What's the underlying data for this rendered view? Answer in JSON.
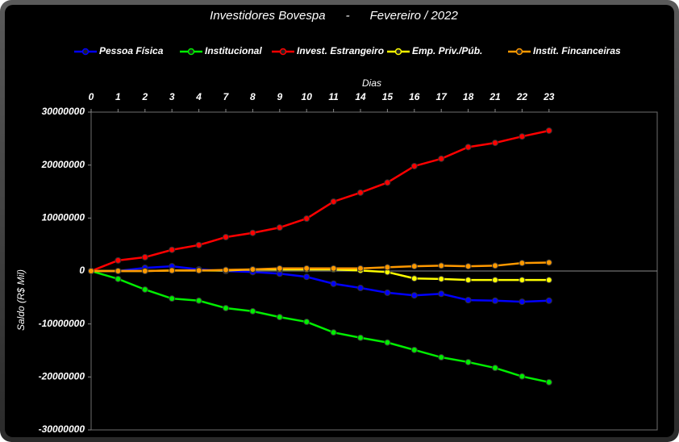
{
  "chart_data": {
    "type": "line",
    "title": "Investidores Bovespa      -      Fevereiro / 2022",
    "x_label": "Dias",
    "y_label": "Saldo (R$ Mil)",
    "categories": [
      "0",
      "1",
      "2",
      "3",
      "4",
      "7",
      "8",
      "9",
      "10",
      "11",
      "14",
      "15",
      "16",
      "17",
      "18",
      "21",
      "22",
      "23"
    ],
    "ylim": [
      -30000000,
      30000000
    ],
    "yticks": [
      -30000000,
      -20000000,
      -10000000,
      0,
      10000000,
      20000000,
      30000000
    ],
    "grid": false,
    "legend": "top",
    "series": [
      {
        "name": "Pessoa Física",
        "color": "#0000ff",
        "values": [
          0,
          0,
          600000,
          900000,
          300000,
          0,
          -200000,
          -500000,
          -1100000,
          -2400000,
          -3200000,
          -4100000,
          -4600000,
          -4300000,
          -5500000,
          -5600000,
          -5800000,
          -5600000
        ]
      },
      {
        "name": "Institucional",
        "color": "#00ee00",
        "values": [
          0,
          -1500000,
          -3500000,
          -5200000,
          -5600000,
          -7000000,
          -7600000,
          -8700000,
          -9600000,
          -11600000,
          -12600000,
          -13500000,
          -14900000,
          -16300000,
          -17200000,
          -18300000,
          -19900000,
          -21000000
        ]
      },
      {
        "name": "Invest. Estrangeiro",
        "color": "#ff0000",
        "values": [
          0,
          2000000,
          2600000,
          4000000,
          4900000,
          6400000,
          7200000,
          8200000,
          9900000,
          13100000,
          14800000,
          16700000,
          19800000,
          21200000,
          23400000,
          24200000,
          25400000,
          26500000
        ]
      },
      {
        "name": "Emp. Priv./Púb.",
        "color": "#ffff00",
        "values": [
          0,
          0,
          0,
          100000,
          100000,
          100000,
          300000,
          300000,
          300000,
          300000,
          100000,
          -200000,
          -1400000,
          -1500000,
          -1700000,
          -1700000,
          -1700000,
          -1700000
        ]
      },
      {
        "name": "Instit. Fincanceiras",
        "color": "#ff9900",
        "values": [
          0,
          0,
          0,
          100000,
          100000,
          200000,
          300000,
          500000,
          500000,
          500000,
          500000,
          700000,
          900000,
          1000000,
          900000,
          1000000,
          1500000,
          1600000
        ]
      }
    ]
  }
}
